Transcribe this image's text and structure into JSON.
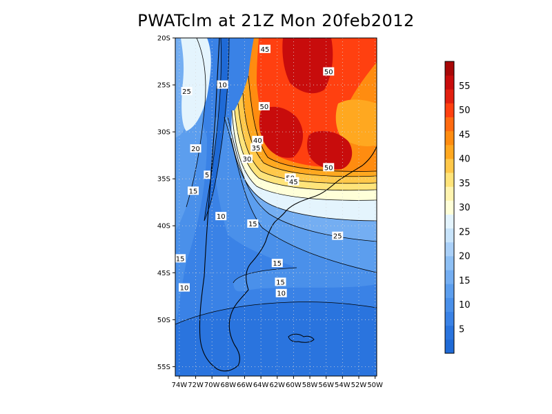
{
  "title": "PWATclm at 21Z Mon 20feb2012",
  "map": {
    "lon_range": [
      -74.5,
      -49.8
    ],
    "lat_range": [
      -56,
      -20
    ],
    "x_ticks": [
      "74W",
      "72W",
      "70W",
      "68W",
      "66W",
      "64W",
      "62W",
      "60W",
      "58W",
      "56W",
      "54W",
      "52W",
      "50W"
    ],
    "x_tick_lons": [
      -74,
      -72,
      -70,
      -68,
      -66,
      -64,
      -62,
      -60,
      -58,
      -56,
      -54,
      -52,
      -50
    ],
    "y_ticks": [
      "20S",
      "25S",
      "30S",
      "35S",
      "40S",
      "45S",
      "50S",
      "55S"
    ],
    "y_tick_lats": [
      -20,
      -25,
      -30,
      -35,
      -40,
      -45,
      -50,
      -55
    ],
    "contour_labels": [
      {
        "text": "45",
        "lon": -63.5,
        "lat": -21.2
      },
      {
        "text": "50",
        "lon": -55.7,
        "lat": -23.6
      },
      {
        "text": "25",
        "lon": -73.1,
        "lat": -25.7
      },
      {
        "text": "10",
        "lon": -68.7,
        "lat": -25.0
      },
      {
        "text": "50",
        "lon": -63.6,
        "lat": -27.3
      },
      {
        "text": "40",
        "lon": -64.4,
        "lat": -30.9
      },
      {
        "text": "35",
        "lon": -64.6,
        "lat": -31.7
      },
      {
        "text": "30",
        "lon": -65.7,
        "lat": -32.9
      },
      {
        "text": "20",
        "lon": -72.0,
        "lat": -31.8
      },
      {
        "text": "50",
        "lon": -55.7,
        "lat": -33.8
      },
      {
        "text": "5",
        "lon": -70.6,
        "lat": -34.6
      },
      {
        "text": "50",
        "lon": -60.4,
        "lat": -34.9
      },
      {
        "text": "45",
        "lon": -60.0,
        "lat": -35.3
      },
      {
        "text": "15",
        "lon": -72.3,
        "lat": -36.3
      },
      {
        "text": "10",
        "lon": -68.9,
        "lat": -39.0
      },
      {
        "text": "15",
        "lon": -65.0,
        "lat": -39.8
      },
      {
        "text": "25",
        "lon": -54.6,
        "lat": -41.1
      },
      {
        "text": "15",
        "lon": -73.9,
        "lat": -43.5
      },
      {
        "text": "15",
        "lon": -62.0,
        "lat": -44.0
      },
      {
        "text": "10",
        "lon": -73.4,
        "lat": -46.6
      },
      {
        "text": "15",
        "lon": -61.6,
        "lat": -46.0
      },
      {
        "text": "10",
        "lon": -61.5,
        "lat": -47.2
      }
    ]
  },
  "colorbar": {
    "levels": [
      0,
      5,
      10,
      15,
      20,
      25,
      30,
      35,
      40,
      45,
      50,
      55,
      60
    ],
    "bins": [
      0,
      2.5,
      5,
      7.5,
      10,
      12.5,
      15,
      17.5,
      20,
      22.5,
      25,
      27.5,
      30,
      32.5,
      35,
      37.5,
      40,
      42.5,
      45,
      47.5,
      50,
      52.5,
      55,
      57.5,
      60
    ],
    "labels": [
      "5",
      "10",
      "15",
      "20",
      "25",
      "30",
      "35",
      "40",
      "45",
      "50",
      "55"
    ],
    "label_values": [
      5,
      10,
      15,
      20,
      25,
      30,
      35,
      40,
      45,
      50,
      55
    ],
    "colors": [
      "#1f6ad6",
      "#2a74de",
      "#3a82e6",
      "#4a90ea",
      "#5c9eee",
      "#74aef2",
      "#8ec0f5",
      "#aad0f8",
      "#c8e4fb",
      "#e4f4fd",
      "#ffffd8",
      "#fff4b0",
      "#ffe47a",
      "#ffc84a",
      "#ffa820",
      "#ff8c10",
      "#ff6a10",
      "#ff4010",
      "#e22010",
      "#c80c0c",
      "#a80808"
    ]
  }
}
